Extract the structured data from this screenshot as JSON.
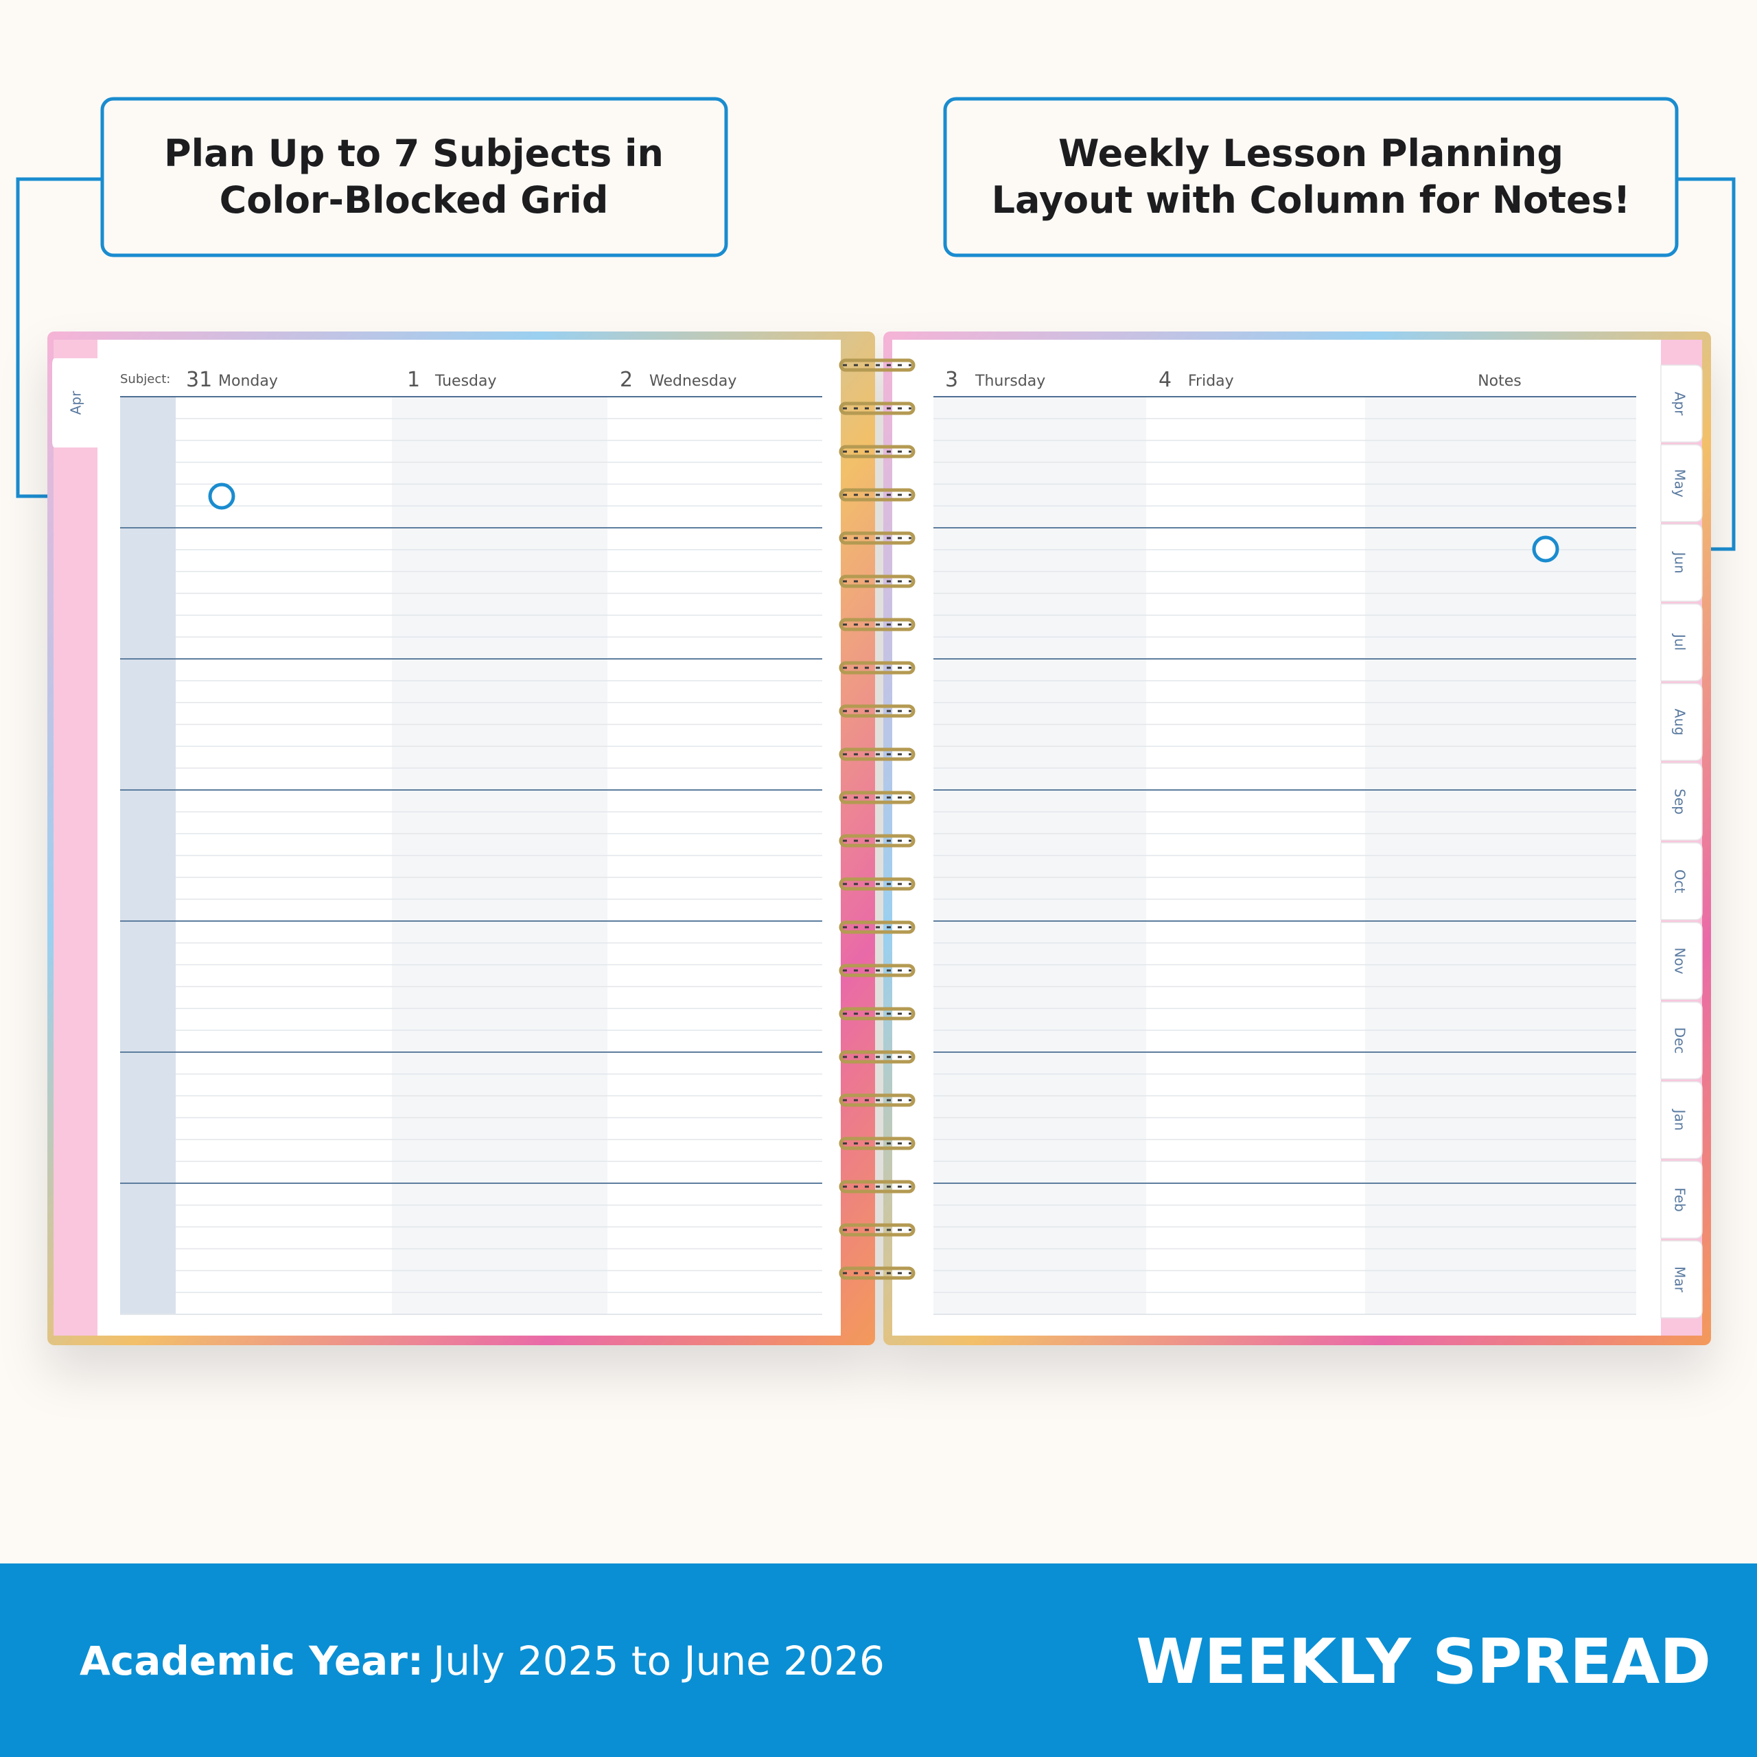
{
  "callouts": [
    {
      "lines": [
        "Plan Up to 7 Subjects in",
        "Color-Blocked Grid"
      ]
    },
    {
      "lines": [
        "Weekly Lesson Planning",
        "Layout with Column for Notes!"
      ]
    }
  ],
  "left_page": {
    "tab": "Apr",
    "subject_label": "Subject:",
    "days": [
      {
        "date": "31",
        "name": "Monday"
      },
      {
        "date": "1",
        "name": "Tuesday"
      },
      {
        "date": "2",
        "name": "Wednesday"
      }
    ]
  },
  "right_page": {
    "days": [
      {
        "date": "3",
        "name": "Thursday"
      },
      {
        "date": "4",
        "name": "Friday"
      }
    ],
    "notes": "Notes",
    "tabs": [
      "Apr",
      "May",
      "Jun",
      "Jul",
      "Aug",
      "Sep",
      "Oct",
      "Nov",
      "Dec",
      "Jan",
      "Feb",
      "Mar"
    ]
  },
  "footer": {
    "label": "Academic Year:",
    "text": "July 2025 to June 2026",
    "title": "WEEKLY SPREAD"
  }
}
